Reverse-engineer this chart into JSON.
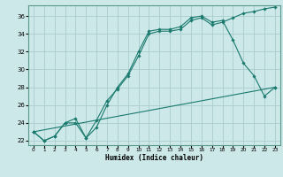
{
  "xlabel": "Humidex (Indice chaleur)",
  "ylabel": "",
  "bg_color": "#cce8e8",
  "grid_color": "#aacccc",
  "line_color": "#1a7a6e",
  "xlim": [
    -0.5,
    23.5
  ],
  "ylim": [
    21.5,
    37.2
  ],
  "yticks": [
    22,
    24,
    26,
    28,
    30,
    32,
    34,
    36
  ],
  "xticks": [
    0,
    1,
    2,
    3,
    4,
    5,
    6,
    7,
    8,
    9,
    10,
    11,
    12,
    13,
    14,
    15,
    16,
    17,
    18,
    19,
    20,
    21,
    22,
    23
  ],
  "line1_x": [
    0,
    1,
    2,
    3,
    4,
    5,
    6,
    7,
    8,
    9,
    10,
    11,
    12,
    13,
    14,
    15,
    16,
    17,
    18,
    19,
    20,
    21,
    22,
    23
  ],
  "line1_y": [
    23.0,
    22.0,
    22.5,
    24.0,
    24.0,
    22.3,
    23.5,
    26.0,
    28.0,
    29.5,
    32.0,
    34.3,
    34.5,
    34.5,
    34.8,
    35.8,
    36.0,
    35.3,
    35.5,
    33.3,
    30.7,
    29.3,
    27.0,
    28.0
  ],
  "line2_x": [
    0,
    1,
    2,
    3,
    4,
    5,
    6,
    7,
    8,
    9,
    10,
    11,
    12,
    13,
    14,
    15,
    16,
    17,
    18,
    19,
    20,
    21,
    22,
    23
  ],
  "line2_y": [
    23.0,
    22.0,
    22.5,
    24.0,
    24.5,
    22.3,
    24.3,
    26.5,
    27.8,
    29.3,
    31.5,
    34.0,
    34.3,
    34.3,
    34.5,
    35.5,
    35.8,
    35.0,
    35.3,
    35.8,
    36.3,
    36.5,
    36.8,
    37.0
  ],
  "line3_x": [
    0,
    23
  ],
  "line3_y": [
    23.0,
    28.0
  ]
}
